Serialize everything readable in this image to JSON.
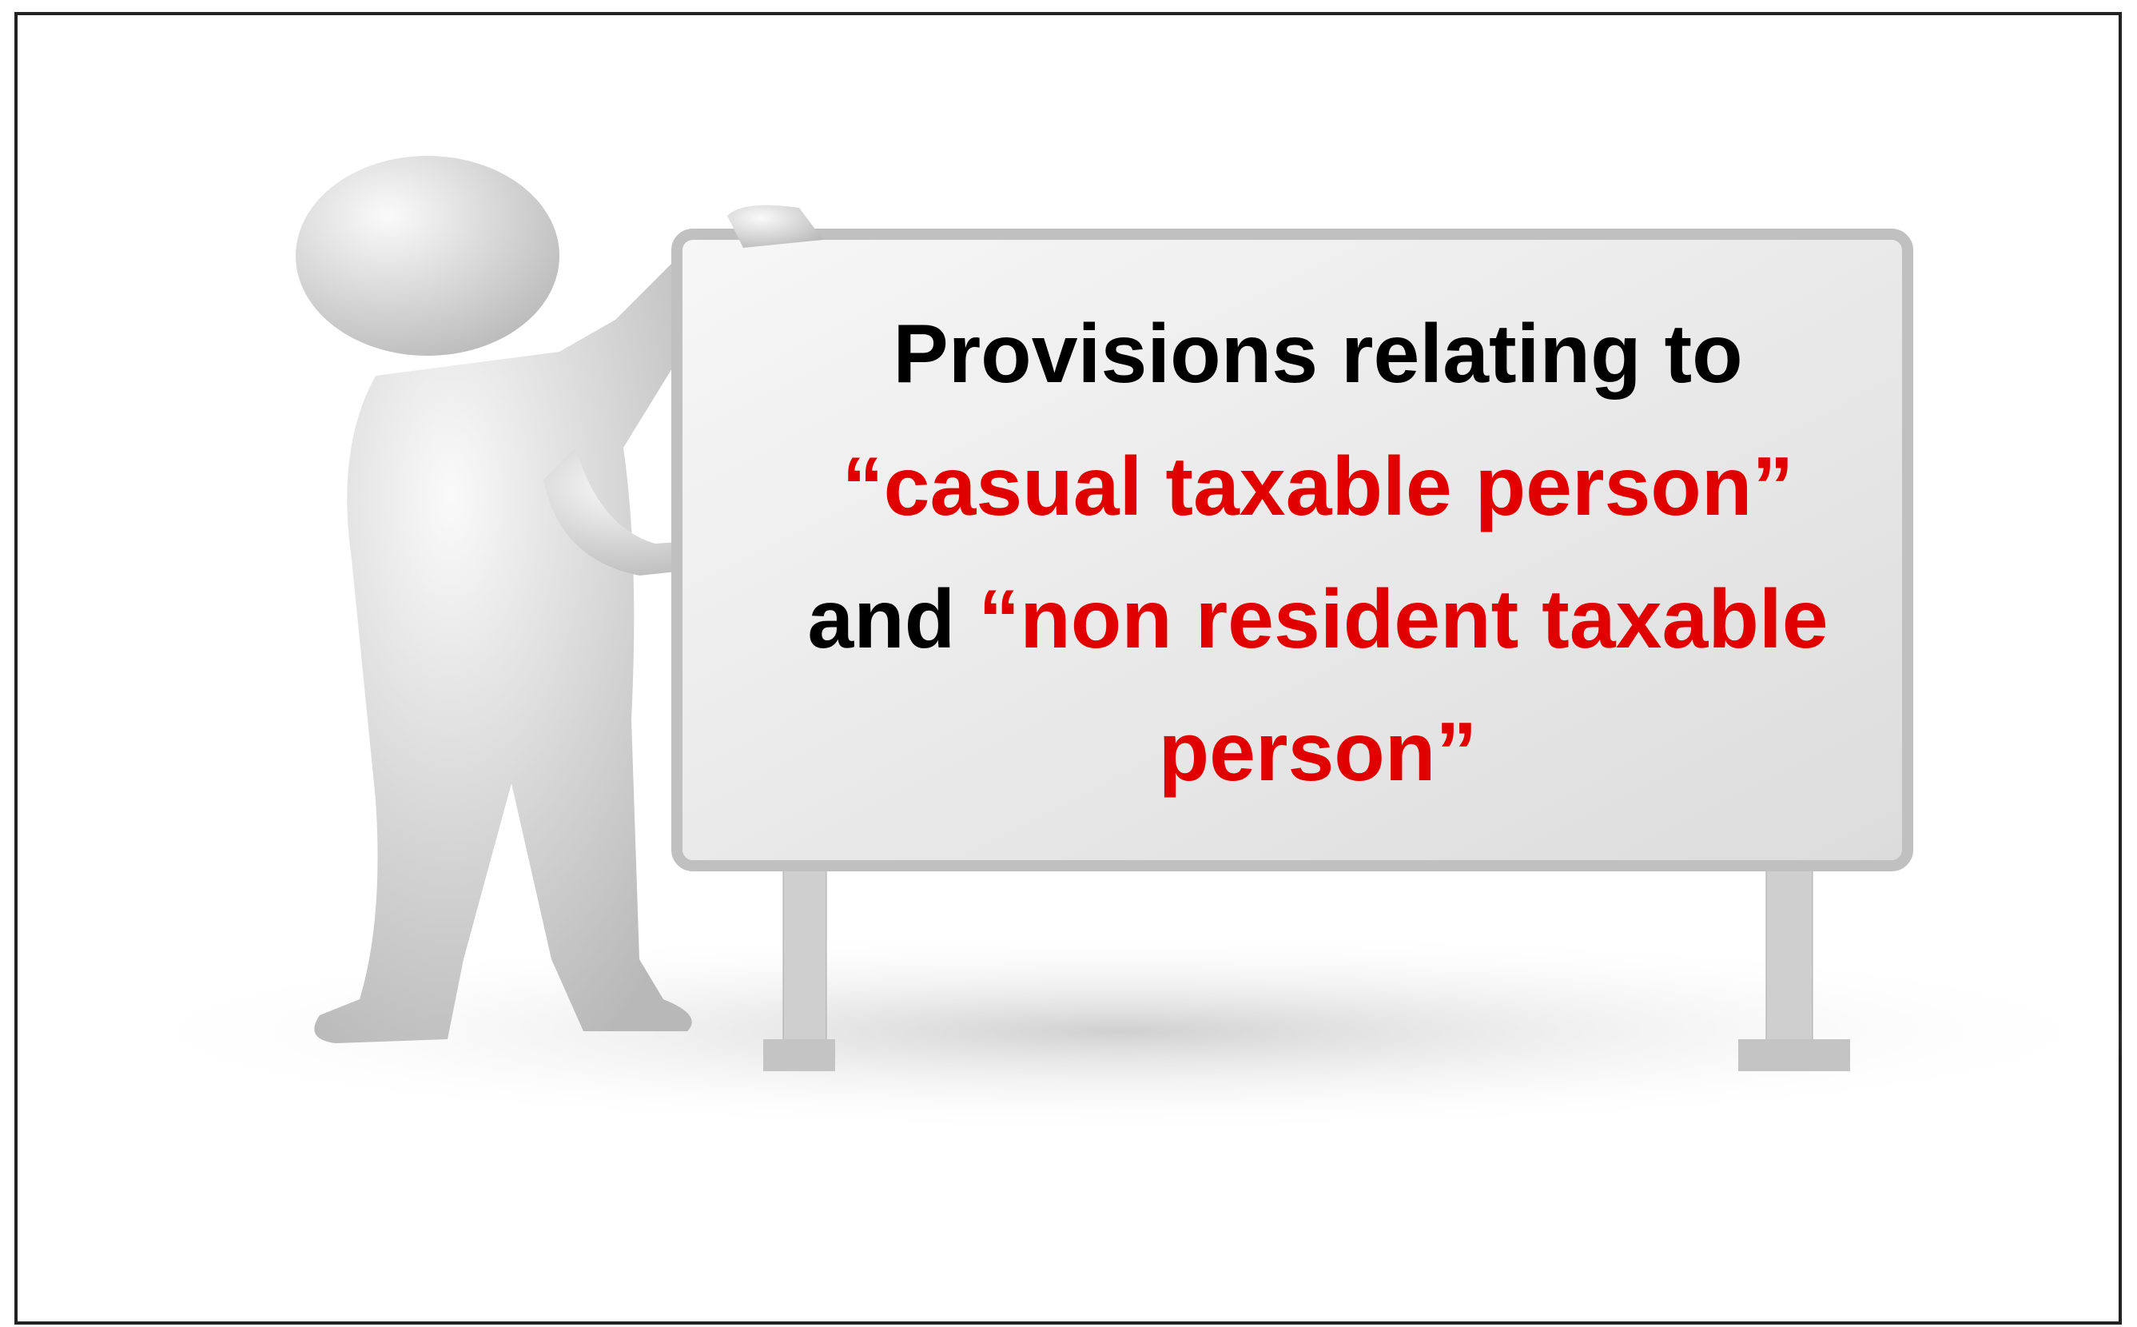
{
  "board": {
    "text": [
      {
        "text": "Provisions relating to",
        "color": "#000000"
      },
      {
        "text": "“casual taxable person”",
        "color": "#e00000"
      },
      {
        "text": "and",
        "color": "#000000"
      },
      {
        "text": "“non resident taxable person”",
        "color": "#e00000"
      }
    ]
  }
}
